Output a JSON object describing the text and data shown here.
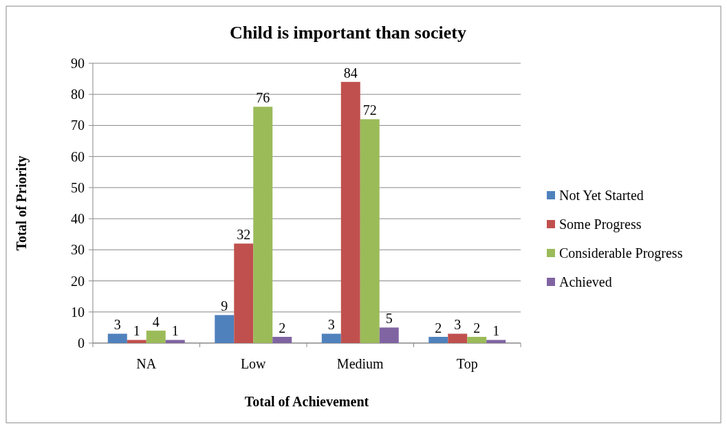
{
  "chart_data": {
    "type": "bar",
    "title": "Child is important than society",
    "xlabel": "Total of Achievement",
    "ylabel": "Total of Priority",
    "categories": [
      "NA",
      "Low",
      "Medium",
      "Top"
    ],
    "series": [
      {
        "name": "Not Yet Started",
        "color": "#4f81bd",
        "values": [
          3,
          9,
          3,
          2
        ]
      },
      {
        "name": "Some Progress",
        "color": "#c0504d",
        "values": [
          1,
          32,
          84,
          3
        ]
      },
      {
        "name": "Considerable Progress",
        "color": "#9bbb59",
        "values": [
          4,
          76,
          72,
          2
        ]
      },
      {
        "name": "Achieved",
        "color": "#8064a2",
        "values": [
          1,
          2,
          5,
          1
        ]
      }
    ],
    "ylim": [
      0,
      90
    ],
    "yticks": [
      0,
      10,
      20,
      30,
      40,
      50,
      60,
      70,
      80,
      90
    ],
    "grid": "y",
    "legend": "right",
    "data_labels": true
  }
}
